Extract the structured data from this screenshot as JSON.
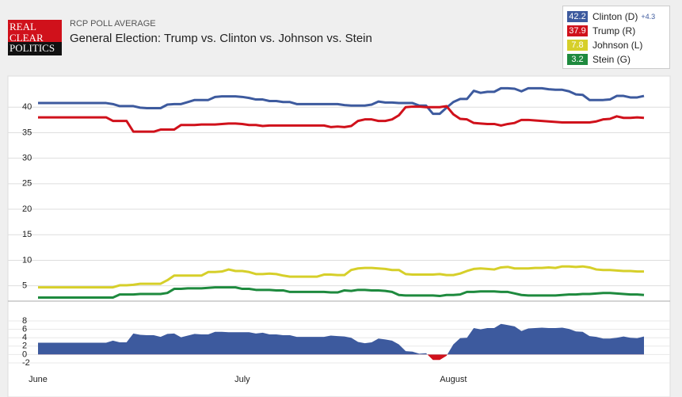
{
  "logo": [
    "REAL",
    "CLEAR",
    "POLITICS"
  ],
  "chart_data": [
    {
      "type": "line",
      "subtitle": "RCP POLL AVERAGE",
      "title": "General Election: Trump vs. Clinton vs. Johnson vs. Stein",
      "ylim": [
        2,
        45
      ],
      "yticks": [
        5,
        10,
        15,
        20,
        25,
        30,
        35,
        40
      ],
      "grid": true,
      "series": [
        {
          "name": "Clinton (D)",
          "color": "#3d5a9e",
          "values": [
            40.8,
            40.8,
            40.8,
            40.8,
            40.8,
            40.8,
            40.8,
            40.8,
            40.8,
            40.8,
            40.8,
            40.6,
            40.2,
            40.2,
            40.2,
            39.9,
            39.8,
            39.8,
            39.8,
            40.5,
            40.6,
            40.6,
            41.0,
            41.4,
            41.4,
            41.4,
            42.0,
            42.1,
            42.1,
            42.1,
            42.0,
            41.8,
            41.5,
            41.5,
            41.2,
            41.2,
            41.0,
            41.0,
            40.6,
            40.6,
            40.6,
            40.6,
            40.6,
            40.6,
            40.6,
            40.4,
            40.3,
            40.3,
            40.3,
            40.5,
            41.1,
            40.9,
            40.9,
            40.8,
            40.8,
            40.8,
            40.3,
            40.3,
            38.7,
            38.7,
            39.9,
            41.0,
            41.6,
            41.6,
            43.2,
            42.8,
            43.0,
            43.0,
            43.7,
            43.7,
            43.6,
            43.1,
            43.7,
            43.7,
            43.7,
            43.5,
            43.4,
            43.4,
            43.1,
            42.5,
            42.4,
            41.4,
            41.4,
            41.4,
            41.5,
            42.2,
            42.2,
            41.9,
            41.9,
            42.2
          ]
        },
        {
          "name": "Trump (R)",
          "color": "#d0111b",
          "values": [
            38.0,
            38.0,
            38.0,
            38.0,
            38.0,
            38.0,
            38.0,
            38.0,
            38.0,
            38.0,
            38.0,
            37.3,
            37.3,
            37.3,
            35.2,
            35.2,
            35.2,
            35.2,
            35.6,
            35.6,
            35.6,
            36.5,
            36.5,
            36.5,
            36.6,
            36.6,
            36.6,
            36.7,
            36.8,
            36.8,
            36.7,
            36.5,
            36.5,
            36.3,
            36.4,
            36.4,
            36.4,
            36.4,
            36.4,
            36.4,
            36.4,
            36.4,
            36.4,
            36.1,
            36.2,
            36.1,
            36.3,
            37.3,
            37.6,
            37.6,
            37.3,
            37.3,
            37.6,
            38.4,
            40.0,
            40.1,
            40.1,
            40.0,
            40.0,
            40.0,
            40.2,
            38.6,
            37.7,
            37.6,
            36.9,
            36.8,
            36.7,
            36.7,
            36.4,
            36.7,
            36.9,
            37.5,
            37.5,
            37.4,
            37.3,
            37.2,
            37.1,
            37.0,
            37.0,
            37.0,
            37.0,
            37.0,
            37.2,
            37.6,
            37.7,
            38.2,
            37.9,
            37.9,
            38.0,
            37.9
          ]
        },
        {
          "name": "Johnson (L)",
          "color": "#d6cf2a",
          "values": [
            4.7,
            4.7,
            4.7,
            4.7,
            4.7,
            4.7,
            4.7,
            4.7,
            4.7,
            4.7,
            4.7,
            4.7,
            5.1,
            5.1,
            5.2,
            5.4,
            5.4,
            5.4,
            5.4,
            6.1,
            7.0,
            7.0,
            7.0,
            7.0,
            7.0,
            7.7,
            7.7,
            7.8,
            8.2,
            7.9,
            7.9,
            7.7,
            7.3,
            7.3,
            7.4,
            7.3,
            7.0,
            6.8,
            6.8,
            6.8,
            6.8,
            6.8,
            7.2,
            7.2,
            7.1,
            7.1,
            8.1,
            8.4,
            8.5,
            8.5,
            8.4,
            8.3,
            8.1,
            8.1,
            7.3,
            7.2,
            7.2,
            7.2,
            7.2,
            7.3,
            7.1,
            7.1,
            7.4,
            7.9,
            8.3,
            8.4,
            8.3,
            8.2,
            8.6,
            8.7,
            8.4,
            8.4,
            8.4,
            8.5,
            8.5,
            8.6,
            8.5,
            8.8,
            8.8,
            8.7,
            8.8,
            8.6,
            8.2,
            8.1,
            8.1,
            8.0,
            7.9,
            7.9,
            7.8,
            7.8
          ]
        },
        {
          "name": "Stein (G)",
          "color": "#1e8a3e",
          "values": [
            2.7,
            2.7,
            2.7,
            2.7,
            2.7,
            2.7,
            2.7,
            2.7,
            2.7,
            2.7,
            2.7,
            2.7,
            3.3,
            3.3,
            3.3,
            3.4,
            3.4,
            3.4,
            3.4,
            3.6,
            4.4,
            4.4,
            4.5,
            4.5,
            4.5,
            4.6,
            4.7,
            4.7,
            4.7,
            4.7,
            4.4,
            4.4,
            4.2,
            4.2,
            4.2,
            4.1,
            4.1,
            3.8,
            3.8,
            3.8,
            3.8,
            3.8,
            3.8,
            3.7,
            3.7,
            4.1,
            4.0,
            4.2,
            4.2,
            4.1,
            4.1,
            4.0,
            3.8,
            3.2,
            3.1,
            3.1,
            3.1,
            3.1,
            3.1,
            3.0,
            3.2,
            3.2,
            3.3,
            3.8,
            3.8,
            3.9,
            3.9,
            3.9,
            3.8,
            3.8,
            3.5,
            3.2,
            3.1,
            3.1,
            3.1,
            3.1,
            3.1,
            3.2,
            3.3,
            3.3,
            3.4,
            3.4,
            3.5,
            3.6,
            3.6,
            3.5,
            3.4,
            3.3,
            3.3,
            3.2
          ]
        }
      ]
    },
    {
      "type": "area",
      "color": "#3d5a9e",
      "negative_color": "#d0111b",
      "latest_label": "+4.3",
      "ylim": [
        -3,
        10
      ],
      "yticks": [
        -2,
        0,
        2,
        4,
        6,
        8
      ],
      "grid": true,
      "categories": [
        "June",
        null,
        null,
        null,
        null,
        null,
        null,
        null,
        null,
        null,
        null,
        null,
        null,
        null,
        null,
        null,
        null,
        null,
        null,
        null,
        null,
        null,
        null,
        null,
        null,
        null,
        null,
        null,
        null,
        null,
        "July",
        null,
        null,
        null,
        null,
        null,
        null,
        null,
        null,
        null,
        null,
        null,
        null,
        null,
        null,
        null,
        null,
        null,
        null,
        null,
        null,
        null,
        null,
        null,
        null,
        null,
        null,
        null,
        null,
        null,
        null,
        "August",
        null,
        null,
        null,
        null,
        null,
        null,
        null,
        null,
        null,
        null,
        null,
        null,
        null,
        null,
        null,
        null,
        null,
        null,
        null,
        null,
        null,
        null,
        null,
        null,
        null,
        null,
        null,
        null
      ],
      "values": [
        2.8,
        2.8,
        2.8,
        2.8,
        2.8,
        2.8,
        2.8,
        2.8,
        2.8,
        2.8,
        2.8,
        3.3,
        2.9,
        2.9,
        5.0,
        4.7,
        4.6,
        4.6,
        4.2,
        4.9,
        5.0,
        4.1,
        4.5,
        4.9,
        4.8,
        4.8,
        5.4,
        5.4,
        5.3,
        5.3,
        5.3,
        5.3,
        5.0,
        5.2,
        4.8,
        4.8,
        4.6,
        4.6,
        4.2,
        4.2,
        4.2,
        4.2,
        4.2,
        4.5,
        4.4,
        4.3,
        4.0,
        3.0,
        2.7,
        2.9,
        3.8,
        3.6,
        3.3,
        2.4,
        0.8,
        0.7,
        0.2,
        0.3,
        -1.3,
        -1.3,
        -0.3,
        2.4,
        3.9,
        4.0,
        6.3,
        6.0,
        6.3,
        6.3,
        7.3,
        7.0,
        6.7,
        5.6,
        6.2,
        6.3,
        6.4,
        6.3,
        6.3,
        6.4,
        6.1,
        5.5,
        5.4,
        4.4,
        4.2,
        3.8,
        3.8,
        4.0,
        4.3,
        4.0,
        3.9,
        4.3
      ]
    }
  ]
}
